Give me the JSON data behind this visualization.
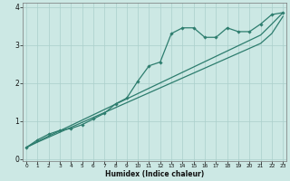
{
  "xlabel": "Humidex (Indice chaleur)",
  "x_pts": [
    0,
    1,
    2,
    3,
    4,
    5,
    6,
    7,
    8,
    9,
    10,
    11,
    12,
    13,
    14,
    15,
    16,
    17,
    18,
    19,
    20,
    21,
    22,
    23
  ],
  "y_curve": [
    0.3,
    0.5,
    0.65,
    0.75,
    0.8,
    0.9,
    1.05,
    1.2,
    1.45,
    1.6,
    2.05,
    2.45,
    2.55,
    3.3,
    3.45,
    3.45,
    3.2,
    3.2,
    3.45,
    3.35,
    3.35,
    3.55,
    3.8,
    3.85
  ],
  "y_line1": [
    0.3,
    0.46,
    0.6,
    0.74,
    0.88,
    1.02,
    1.16,
    1.3,
    1.44,
    1.58,
    1.72,
    1.86,
    2.0,
    2.14,
    2.28,
    2.42,
    2.56,
    2.7,
    2.84,
    2.98,
    3.12,
    3.26,
    3.55,
    3.85
  ],
  "y_line2": [
    0.3,
    0.44,
    0.57,
    0.7,
    0.83,
    0.96,
    1.09,
    1.22,
    1.35,
    1.48,
    1.61,
    1.74,
    1.87,
    2.0,
    2.13,
    2.26,
    2.39,
    2.52,
    2.65,
    2.78,
    2.91,
    3.04,
    3.3,
    3.75
  ],
  "line_color": "#2d7d6e",
  "bg_color": "#cce8e4",
  "grid_color": "#aacfcb",
  "xlim": [
    0,
    23
  ],
  "ylim": [
    0,
    4
  ],
  "yticks": [
    0,
    1,
    2,
    3,
    4
  ],
  "xticks": [
    0,
    1,
    2,
    3,
    4,
    5,
    6,
    7,
    8,
    9,
    10,
    11,
    12,
    13,
    14,
    15,
    16,
    17,
    18,
    19,
    20,
    21,
    22,
    23
  ]
}
